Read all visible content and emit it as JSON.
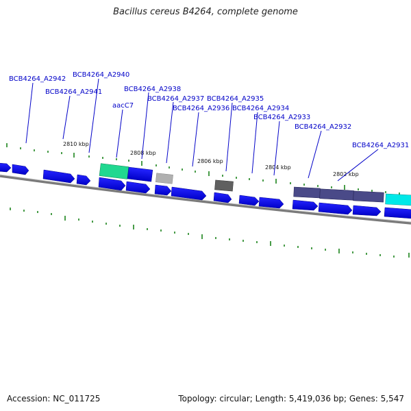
{
  "title": "Bacillus cereus B4264, complete genome",
  "footer": {
    "accession": "Accession: NC_011725",
    "summary": "Topology: circular; Length: 5,419,036 bp; Genes: 5,547"
  },
  "kbp_labels": [
    "2810 kbp",
    "2808 kbp",
    "2806 kbp",
    "2804 kbp",
    "2802 kbp"
  ],
  "gene_labels": [
    "BCB4264_A2942",
    "BCB4264_A2940",
    "BCB4264_A2941",
    "BCB4264_A2938",
    "aacC7",
    "BCB4264_A2937",
    "BCB4264_A2936",
    "BCB4264_A2935",
    "BCB4264_A2934",
    "BCB4264_A2933",
    "BCB4264_A2932",
    "BCB4264_A2931"
  ],
  "colors": {
    "gene_blue": "#0000ee",
    "label_blue": "#0000c8",
    "tick_green": "#0a7a0a",
    "backbone_gray": "#808080",
    "highlight_green": "#20d890",
    "highlight_cyan": "#00e8e8",
    "purple_gene": "#4a4a88",
    "gray_gene": "#b0b0b0",
    "darkgray_gene": "#606060"
  }
}
